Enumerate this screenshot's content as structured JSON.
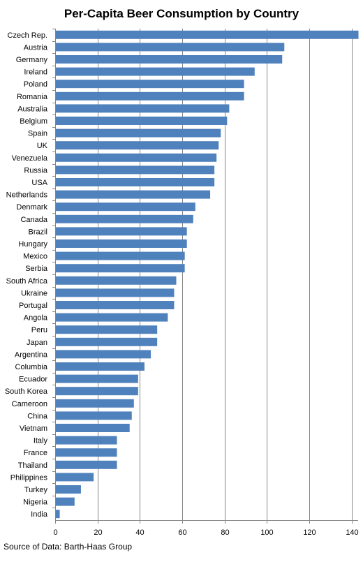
{
  "chart_data": {
    "type": "bar",
    "orientation": "horizontal",
    "title": "Per-Capita Beer Consumption by Country",
    "xlabel": "",
    "ylabel": "",
    "xlim": [
      0,
      143
    ],
    "xticks": [
      0,
      20,
      40,
      60,
      80,
      100,
      120,
      140
    ],
    "grid": "vertical",
    "bar_color": "#4F81BD",
    "categories": [
      "Czech Rep.",
      "Austria",
      "Germany",
      "Ireland",
      "Poland",
      "Romania",
      "Australia",
      "Belgium",
      "Spain",
      "UK",
      "Venezuela",
      "Russia",
      "USA",
      "Netherlands",
      "Denmark",
      "Canada",
      "Brazil",
      "Hungary",
      "Mexico",
      "Serbia",
      "South Africa",
      "Ukraine",
      "Portugal",
      "Angola",
      "Peru",
      "Japan",
      "Argentina",
      "Columbia",
      "Ecuador",
      "South Korea",
      "Cameroon",
      "China",
      "Vietnam",
      "Italy",
      "France",
      "Thailand",
      "Philippines",
      "Turkey",
      "Nigeria",
      "India"
    ],
    "values": [
      143,
      108,
      107,
      94,
      89,
      89,
      82,
      81,
      78,
      77,
      76,
      75,
      75,
      73,
      66,
      65,
      62,
      62,
      61,
      61,
      57,
      56,
      56,
      53,
      48,
      48,
      45,
      42,
      39,
      39,
      37,
      36,
      35,
      29,
      29,
      29,
      18,
      12,
      9,
      2
    ],
    "source": "Source of Data: Barth-Haas Group"
  }
}
